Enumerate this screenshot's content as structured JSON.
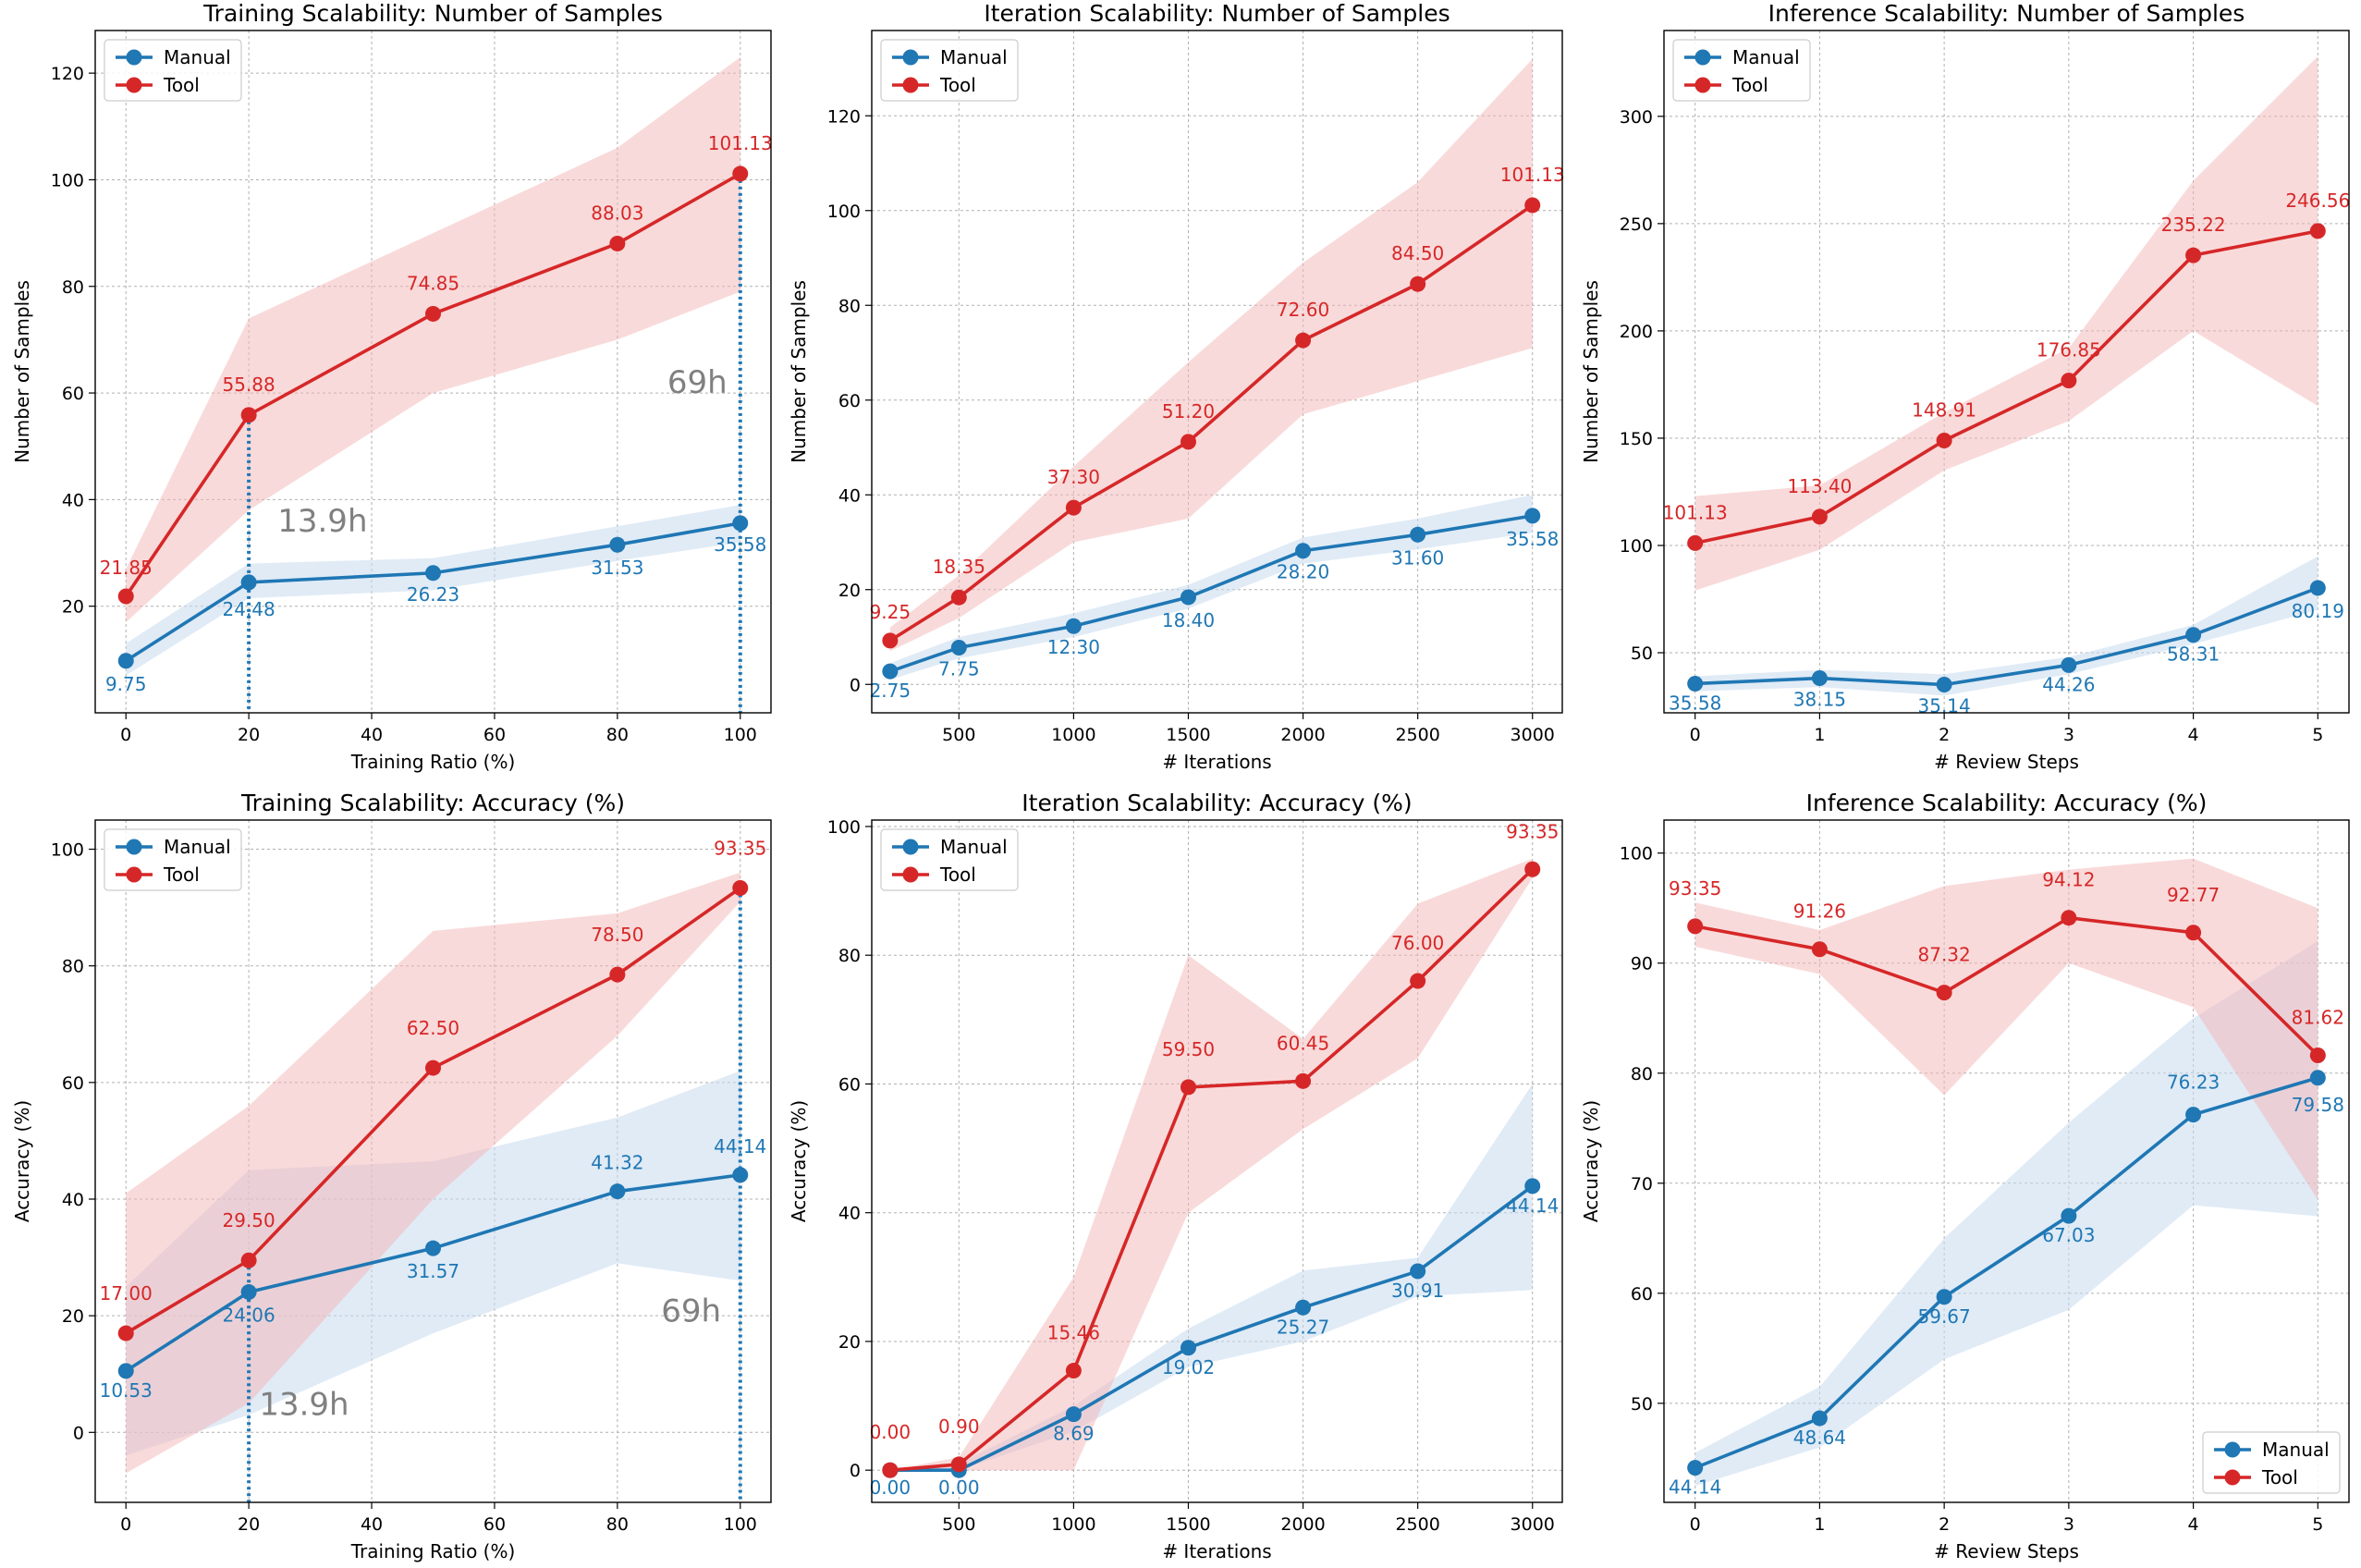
{
  "colors": {
    "manual": "#1f77b4",
    "tool": "#d62728",
    "manual_band": "#c6dbef",
    "tool_band": "#f4b6b6",
    "grid": "#b0b0b0",
    "annotation": "#808080"
  },
  "chart_data": [
    {
      "type": "line",
      "title": "Training Scalability: Number of Samples",
      "xlabel": "Training Ratio (%)",
      "ylabel": "Number of Samples",
      "xlim": [
        -5,
        105
      ],
      "ylim": [
        0,
        128
      ],
      "xticks": [
        0,
        20,
        40,
        60,
        80,
        100
      ],
      "yticks": [
        20,
        40,
        60,
        80,
        100,
        120
      ],
      "legend": "upper-left",
      "x": [
        0,
        20,
        50,
        80,
        100
      ],
      "series": [
        {
          "name": "Manual",
          "values": [
            9.75,
            24.48,
            26.23,
            31.53,
            35.58
          ],
          "labels": [
            "9.75",
            "24.48",
            "26.23",
            "31.53",
            "35.58"
          ],
          "lower": [
            7,
            21.5,
            23,
            28.5,
            32
          ],
          "upper": [
            13,
            28,
            29,
            35,
            39
          ]
        },
        {
          "name": "Tool",
          "values": [
            21.85,
            55.88,
            74.85,
            88.03,
            101.13
          ],
          "labels": [
            "21.85",
            "55.88",
            "74.85",
            "88.03",
            "101.13"
          ],
          "lower": [
            17,
            38,
            60,
            70,
            79
          ],
          "upper": [
            27,
            74,
            90,
            106,
            123
          ]
        }
      ],
      "vlines": [
        20,
        100
      ],
      "annotations": [
        {
          "text": "13.9h",
          "x": 32,
          "y": 34
        },
        {
          "text": "69h",
          "x": 93,
          "y": 60
        }
      ]
    },
    {
      "type": "line",
      "title": "Iteration Scalability: Number of Samples",
      "xlabel": "# Iterations",
      "ylabel": "Number of Samples",
      "xlim": [
        120,
        3130
      ],
      "ylim": [
        -6,
        138
      ],
      "xticks": [
        500,
        1000,
        1500,
        2000,
        2500,
        3000
      ],
      "yticks": [
        0,
        20,
        40,
        60,
        80,
        100,
        120
      ],
      "legend": "upper-left",
      "x": [
        200,
        500,
        1000,
        1500,
        2000,
        2500,
        3000
      ],
      "series": [
        {
          "name": "Manual",
          "values": [
            2.75,
            7.75,
            12.3,
            18.4,
            28.2,
            31.6,
            35.58
          ],
          "labels": [
            "2.75",
            "7.75",
            "12.30",
            "18.40",
            "28.20",
            "31.60",
            "35.58"
          ],
          "lower": [
            1,
            5.5,
            10,
            16,
            25.5,
            28.5,
            32
          ],
          "upper": [
            4.5,
            10,
            15,
            21,
            31,
            35,
            40
          ]
        },
        {
          "name": "Tool",
          "values": [
            9.25,
            18.35,
            37.3,
            51.2,
            72.6,
            84.5,
            101.13
          ],
          "labels": [
            "9.25",
            "18.35",
            "37.30",
            "51.20",
            "72.60",
            "84.50",
            "101.13"
          ],
          "lower": [
            7,
            14,
            30,
            35,
            57,
            64,
            71
          ],
          "upper": [
            12,
            23,
            46,
            68,
            89,
            106,
            132
          ]
        }
      ]
    },
    {
      "type": "line",
      "title": "Inference Scalability: Number of Samples",
      "xlabel": "# Review Steps",
      "ylabel": "Number of Samples",
      "xlim": [
        -0.25,
        5.25
      ],
      "ylim": [
        22,
        340
      ],
      "xticks": [
        0,
        1,
        2,
        3,
        4,
        5
      ],
      "yticks": [
        50,
        100,
        150,
        200,
        250,
        300
      ],
      "legend": "upper-left",
      "x": [
        0,
        1,
        2,
        3,
        4,
        5
      ],
      "series": [
        {
          "name": "Manual",
          "values": [
            35.58,
            38.15,
            35.14,
            44.26,
            58.31,
            80.19
          ],
          "labels": [
            "35.58",
            "38.15",
            "35.14",
            "44.26",
            "58.31",
            "80.19"
          ],
          "lower": [
            32,
            34,
            30,
            40,
            54,
            70
          ],
          "upper": [
            39,
            42,
            40,
            48,
            63,
            95
          ]
        },
        {
          "name": "Tool",
          "values": [
            101.13,
            113.4,
            148.91,
            176.85,
            235.22,
            246.56
          ],
          "labels": [
            "101.13",
            "113.40",
            "148.91",
            "176.85",
            "235.22",
            "246.56"
          ],
          "lower": [
            79,
            98,
            135,
            158,
            200,
            165
          ],
          "upper": [
            123,
            128,
            162,
            192,
            270,
            328
          ]
        }
      ]
    },
    {
      "type": "line",
      "title": "Training Scalability: Accuracy (%)",
      "xlabel": "Training Ratio (%)",
      "ylabel": "Accuracy (%)",
      "xlim": [
        -5,
        105
      ],
      "ylim": [
        -12,
        105
      ],
      "xticks": [
        0,
        20,
        40,
        60,
        80,
        100
      ],
      "yticks": [
        0,
        20,
        40,
        60,
        80,
        100
      ],
      "legend": "upper-left",
      "x": [
        0,
        20,
        50,
        80,
        100
      ],
      "series": [
        {
          "name": "Manual",
          "values": [
            10.53,
            24.06,
            31.57,
            41.32,
            44.14
          ],
          "labels": [
            "10.53",
            "24.06",
            "31.57",
            "41.32",
            "44.14"
          ],
          "lower": [
            -4,
            3,
            17,
            29,
            26
          ],
          "upper": [
            25,
            45,
            46.5,
            54,
            62
          ]
        },
        {
          "name": "Tool",
          "values": [
            17.0,
            29.5,
            62.5,
            78.5,
            93.35
          ],
          "labels": [
            "17.00",
            "29.50",
            "62.50",
            "78.50",
            "93.35"
          ],
          "lower": [
            -7,
            5,
            40,
            68,
            91
          ],
          "upper": [
            41,
            56,
            86,
            89,
            96
          ]
        }
      ],
      "vlines": [
        20,
        100
      ],
      "annotations": [
        {
          "text": "13.9h",
          "x": 29,
          "y": 3
        },
        {
          "text": "69h",
          "x": 92,
          "y": 19
        }
      ]
    },
    {
      "type": "line",
      "title": "Iteration Scalability: Accuracy (%)",
      "xlabel": "# Iterations",
      "ylabel": "Accuracy (%)",
      "xlim": [
        120,
        3130
      ],
      "ylim": [
        -5,
        101
      ],
      "xticks": [
        500,
        1000,
        1500,
        2000,
        2500,
        3000
      ],
      "yticks": [
        0,
        20,
        40,
        60,
        80,
        100
      ],
      "legend": "upper-left",
      "x": [
        200,
        500,
        1000,
        1500,
        2000,
        2500,
        3000
      ],
      "series": [
        {
          "name": "Manual",
          "values": [
            0.0,
            0.0,
            8.69,
            19.02,
            25.27,
            30.91,
            44.14
          ],
          "labels": [
            "0.00",
            "0.00",
            "8.69",
            "19.02",
            "25.27",
            "30.91",
            "44.14"
          ],
          "lower": [
            0,
            0,
            6,
            16,
            20,
            27,
            28
          ],
          "upper": [
            0,
            1,
            10,
            22,
            31,
            33,
            60
          ]
        },
        {
          "name": "Tool",
          "values": [
            0.0,
            0.9,
            15.46,
            59.5,
            60.45,
            76.0,
            93.35
          ],
          "labels": [
            "0.00",
            "0.90",
            "15.46",
            "59.50",
            "60.45",
            "76.00",
            "93.35"
          ],
          "lower": [
            0,
            0,
            0,
            40,
            53,
            64,
            92
          ],
          "upper": [
            0,
            2,
            30,
            80,
            67,
            88,
            95
          ]
        }
      ]
    },
    {
      "type": "line",
      "title": "Inference Scalability: Accuracy (%)",
      "xlabel": "# Review Steps",
      "ylabel": "Accuracy (%)",
      "xlim": [
        -0.25,
        5.25
      ],
      "ylim": [
        41,
        103
      ],
      "xticks": [
        0,
        1,
        2,
        3,
        4,
        5
      ],
      "yticks": [
        50,
        60,
        70,
        80,
        90,
        100
      ],
      "legend": "lower-right",
      "x": [
        0,
        1,
        2,
        3,
        4,
        5
      ],
      "series": [
        {
          "name": "Manual",
          "values": [
            44.14,
            48.64,
            59.67,
            67.03,
            76.23,
            79.58
          ],
          "labels": [
            "44.14",
            "48.64",
            "59.67",
            "67.03",
            "76.23",
            "79.58"
          ],
          "lower": [
            42.5,
            46,
            54,
            58.5,
            68,
            67
          ],
          "upper": [
            45.5,
            51.5,
            65,
            75.5,
            85,
            92
          ]
        },
        {
          "name": "Tool",
          "values": [
            93.35,
            91.26,
            87.32,
            94.12,
            92.77,
            81.62
          ],
          "labels": [
            "93.35",
            "91.26",
            "87.32",
            "94.12",
            "92.77",
            "81.62"
          ],
          "lower": [
            91.5,
            89,
            78,
            90,
            86,
            68.5
          ],
          "upper": [
            95.5,
            93,
            97,
            98.5,
            99.5,
            95
          ]
        }
      ]
    }
  ]
}
